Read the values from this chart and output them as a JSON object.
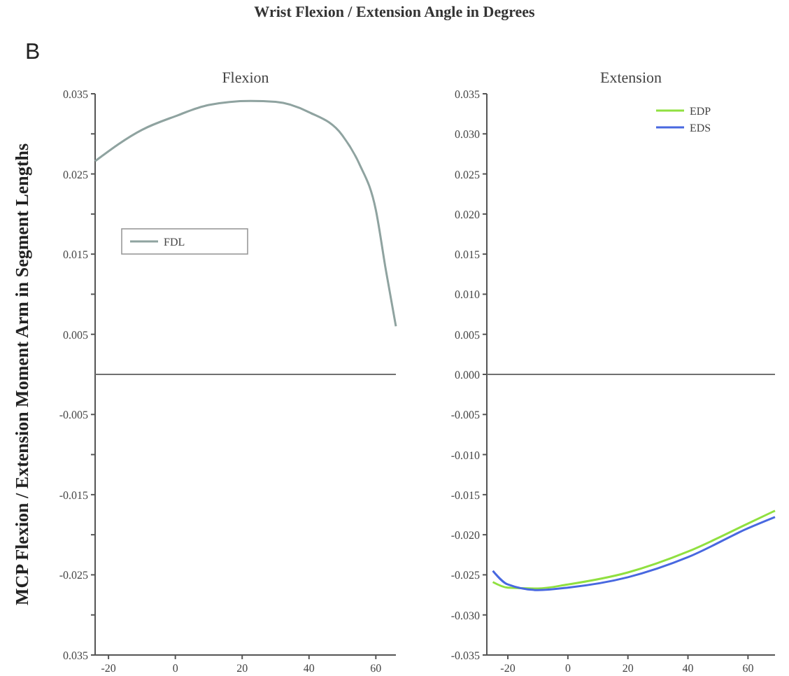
{
  "chart_data": [
    {
      "type": "line",
      "title": "Flexion",
      "ylabel": "MCP Flexion / Extension Moment Arm in Segment Lengths",
      "annotations": [
        "Wrist Flexion / Extension Angle in Degrees",
        "B"
      ],
      "xlim": [
        -24,
        66
      ],
      "xticks": [
        -20,
        0,
        20,
        40,
        60
      ],
      "ylim": [
        -0.035,
        0.035
      ],
      "yticks": [
        0.035,
        {
          "value": 0.03,
          "label": null
        },
        0.025,
        {
          "value": 0.02,
          "label": null
        },
        0.015,
        {
          "value": 0.01,
          "label": null
        },
        0.005,
        {
          "value": -0.005,
          "label": "-0.005"
        },
        {
          "value": -0.01,
          "label": null
        },
        {
          "value": -0.015,
          "label": "-0.015"
        },
        {
          "value": -0.02,
          "label": null
        },
        {
          "value": -0.025,
          "label": "-0.025"
        },
        {
          "value": -0.03,
          "label": null
        },
        {
          "value": -0.035,
          "label": "0.035"
        }
      ],
      "ref_lines": [
        {
          "axis": "y",
          "value": 0,
          "color": "#707070"
        }
      ],
      "legend": "left",
      "grid": false,
      "series": [
        {
          "name": "FDL",
          "color": "#8fa3a0",
          "x": [
            -24,
            -10,
            0,
            10,
            22.5,
            30,
            40,
            50,
            55,
            60,
            63,
            66
          ],
          "values": [
            0.0266,
            0.0305,
            0.0322,
            0.0336,
            0.0341,
            0.034,
            0.0327,
            0.0298,
            0.0263,
            0.0205,
            0.013,
            0.006
          ]
        }
      ]
    },
    {
      "type": "line",
      "title": "Extension",
      "xlim": [
        -27,
        69
      ],
      "xticks": [
        -20,
        0,
        20,
        40,
        60
      ],
      "ylim": [
        -0.035,
        0.035
      ],
      "yticks": [
        0.035,
        {
          "value": 0.03,
          "label": "0.030"
        },
        0.025,
        {
          "value": 0.02,
          "label": "0.020"
        },
        0.015,
        {
          "value": 0.01,
          "label": "0.010"
        },
        0.005,
        {
          "value": 0,
          "label": "0.000"
        },
        -0.005,
        {
          "value": -0.01,
          "label": "-0.010"
        },
        -0.015,
        {
          "value": -0.02,
          "label": "-0.020"
        },
        -0.025,
        {
          "value": -0.03,
          "label": "-0.030"
        },
        -0.035
      ],
      "ref_lines": [
        {
          "axis": "y",
          "value": 0,
          "color": "#707070"
        }
      ],
      "legend": "top right",
      "grid": false,
      "series": [
        {
          "name": "EDP",
          "color": "#90e040",
          "x": [
            -25,
            -20,
            -10,
            0,
            20,
            40,
            60,
            69
          ],
          "values": [
            -0.0259,
            -0.0266,
            -0.0267,
            -0.0262,
            -0.0247,
            -0.0221,
            -0.0186,
            -0.017
          ]
        },
        {
          "name": "EDS",
          "color": "#4868e0",
          "x": [
            -25,
            -20,
            -10,
            0,
            20,
            40,
            60,
            69
          ],
          "values": [
            -0.0245,
            -0.0262,
            -0.0269,
            -0.0266,
            -0.0253,
            -0.0228,
            -0.0192,
            -0.0178
          ]
        }
      ]
    }
  ]
}
